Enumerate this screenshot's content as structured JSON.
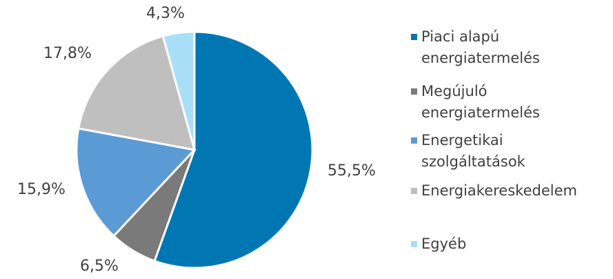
{
  "chart_data": {
    "type": "pie",
    "title": "",
    "start_angle_deg": 0,
    "direction": "clockwise",
    "slices": [
      {
        "label": "Piaci alapú energiatermelés",
        "legend_text": "Piaci alapú\nenergiatermelés",
        "value": 55.5,
        "display": "55,5%",
        "color": "#0077b3"
      },
      {
        "label": "Megújuló energiatermelés",
        "legend_text": "Megújuló\nenergiatermelés",
        "value": 6.5,
        "display": "6,5%",
        "color": "#7a7a7a"
      },
      {
        "label": "Energetikai szolgáltatások",
        "legend_text": "Energetikai\nszolgáltatások",
        "value": 15.9,
        "display": "15,9%",
        "color": "#5b9bd5"
      },
      {
        "label": "Energiakereskedelem",
        "legend_text": "Energiakereskedelem",
        "value": 17.8,
        "display": "17,8%",
        "color": "#bfbfbf"
      },
      {
        "label": "Egyéb",
        "legend_text": "Egyéb",
        "value": 4.3,
        "display": "4,3%",
        "color": "#a8dff7"
      }
    ],
    "legend_position": "right"
  }
}
